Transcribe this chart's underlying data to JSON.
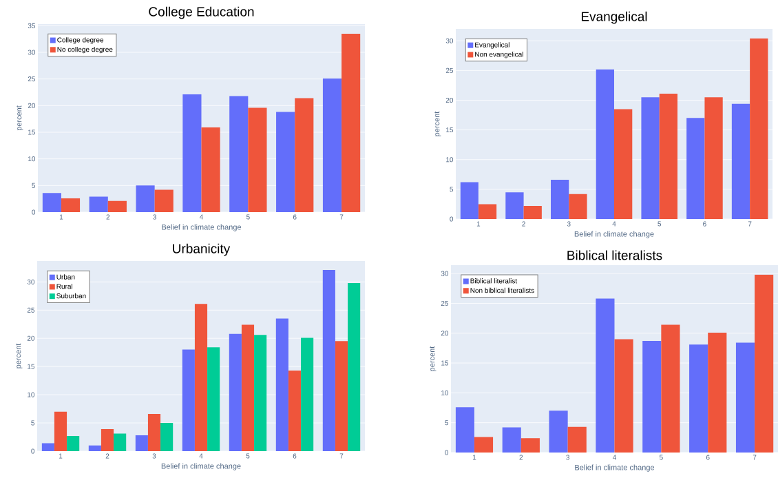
{
  "chart_data": [
    {
      "type": "bar",
      "title": "College Education",
      "xlabel": "Belief in climate change",
      "ylabel": "percent",
      "categories": [
        "1",
        "2",
        "3",
        "4",
        "5",
        "6",
        "7"
      ],
      "ylim": [
        0,
        35.3
      ],
      "yticks": [
        0,
        5,
        10,
        15,
        20,
        25,
        30,
        35
      ],
      "grid": "y",
      "legend": "top left",
      "series": [
        {
          "name": "College degree",
          "color": "#636efa",
          "values": [
            3.6,
            2.9,
            5.0,
            22.1,
            21.8,
            18.8,
            25.1
          ]
        },
        {
          "name": "No college degree",
          "color": "#ef553b",
          "values": [
            2.6,
            2.1,
            4.2,
            15.9,
            19.6,
            21.4,
            33.5
          ]
        }
      ]
    },
    {
      "type": "bar",
      "title": "Evangelical",
      "xlabel": "Belief in climate change",
      "ylabel": "percent",
      "categories": [
        "1",
        "2",
        "3",
        "4",
        "5",
        "6",
        "7"
      ],
      "ylim": [
        0,
        32
      ],
      "yticks": [
        0,
        5,
        10,
        15,
        20,
        25,
        30
      ],
      "grid": "y",
      "legend": "top left",
      "series": [
        {
          "name": "Evangelical",
          "color": "#636efa",
          "values": [
            6.2,
            4.5,
            6.6,
            25.2,
            20.5,
            17.0,
            19.4
          ]
        },
        {
          "name": "Non evangelical",
          "color": "#ef553b",
          "values": [
            2.5,
            2.2,
            4.2,
            18.5,
            21.1,
            20.5,
            30.4
          ]
        }
      ]
    },
    {
      "type": "bar",
      "title": "Urbanicity",
      "xlabel": "Belief in climate change",
      "ylabel": "percent",
      "categories": [
        "1",
        "2",
        "3",
        "4",
        "5",
        "6",
        "7"
      ],
      "ylim": [
        0,
        33.7
      ],
      "yticks": [
        0,
        5,
        10,
        15,
        20,
        25,
        30
      ],
      "grid": "y",
      "legend": "top left",
      "series": [
        {
          "name": "Urban",
          "color": "#636efa",
          "values": [
            1.4,
            1.0,
            2.8,
            18.0,
            20.8,
            23.5,
            32.1
          ]
        },
        {
          "name": "Rural",
          "color": "#ef553b",
          "values": [
            7.0,
            3.9,
            6.6,
            26.1,
            22.4,
            14.3,
            19.5
          ]
        },
        {
          "name": "Suburban",
          "color": "#00cc96",
          "values": [
            2.7,
            3.1,
            5.0,
            18.4,
            20.6,
            20.1,
            29.8
          ]
        }
      ]
    },
    {
      "type": "bar",
      "title": "Biblical literalists",
      "xlabel": "Belief in climate change",
      "ylabel": "percent",
      "categories": [
        "1",
        "2",
        "3",
        "4",
        "5",
        "6",
        "7"
      ],
      "ylim": [
        0,
        31.4
      ],
      "yticks": [
        0,
        5,
        10,
        15,
        20,
        25,
        30
      ],
      "grid": "y",
      "legend": "top left",
      "series": [
        {
          "name": "Biblical literalist",
          "color": "#636efa",
          "values": [
            7.6,
            4.2,
            7.0,
            25.8,
            18.7,
            18.1,
            18.4
          ]
        },
        {
          "name": "Non biblical literalists",
          "color": "#ef553b",
          "values": [
            2.6,
            2.4,
            4.3,
            19.0,
            21.4,
            20.1,
            29.8
          ]
        }
      ]
    }
  ]
}
